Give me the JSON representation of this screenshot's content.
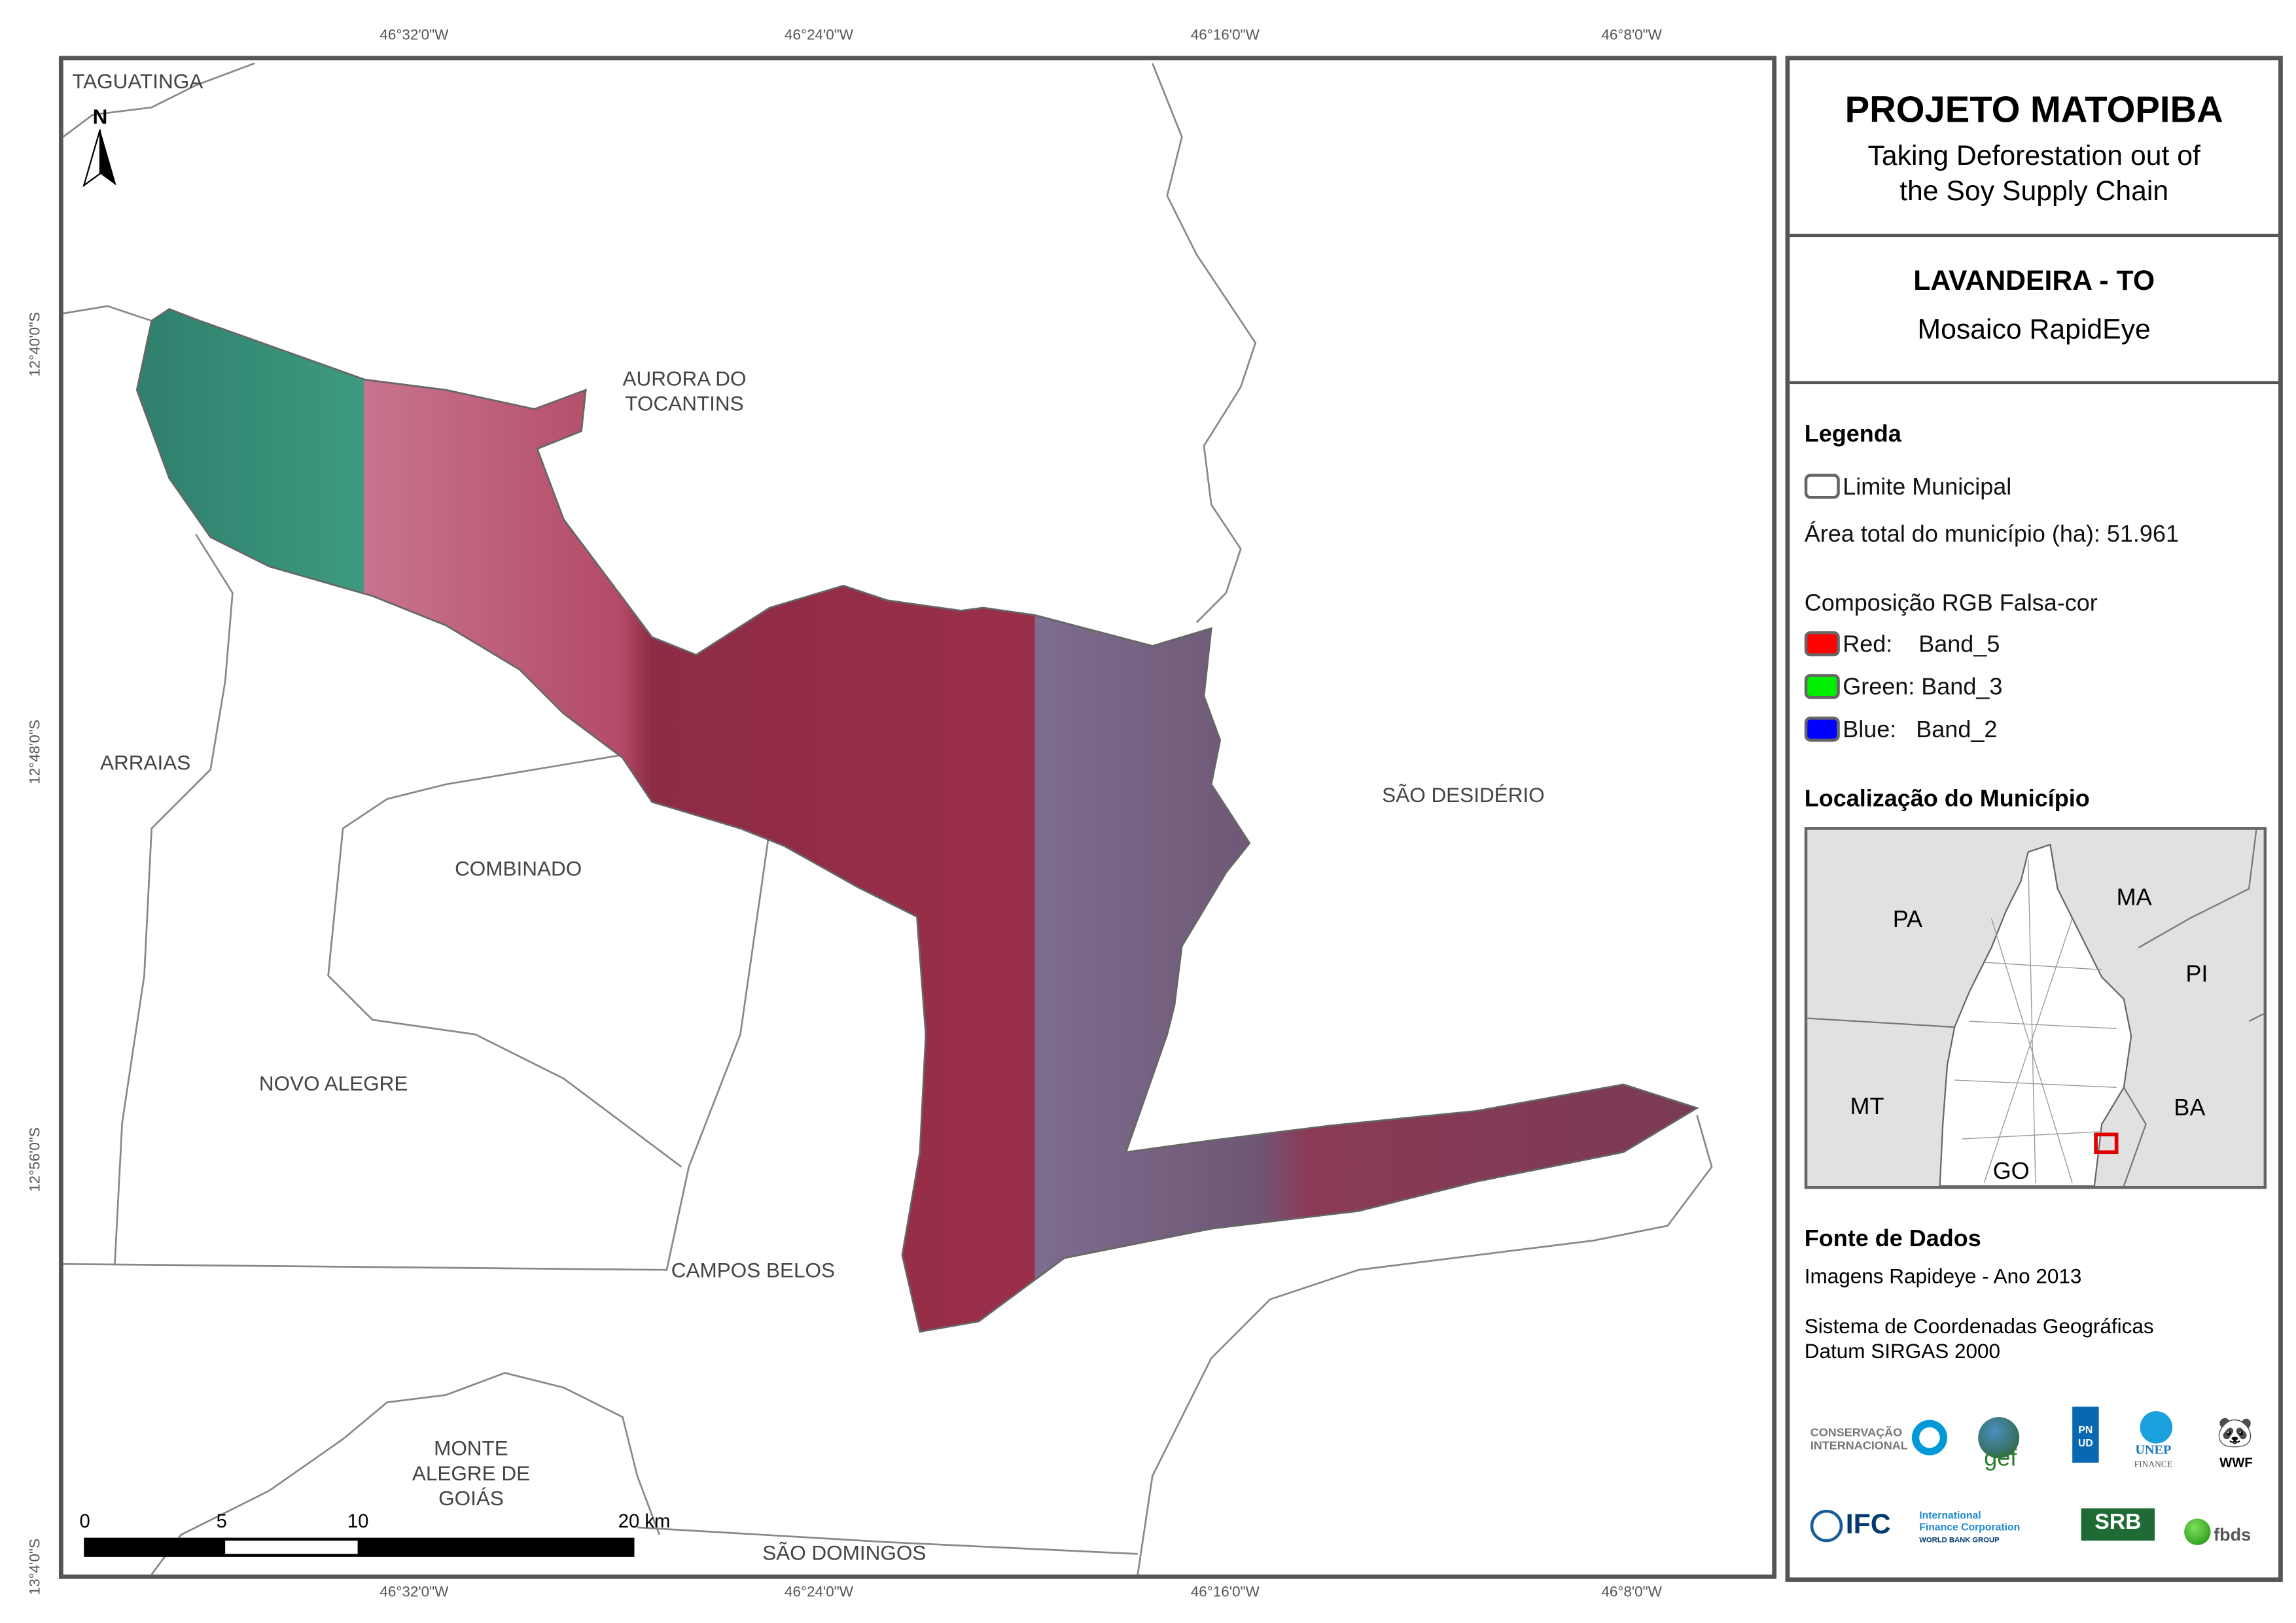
{
  "axes": {
    "lon_ticks": [
      "46°32'0\"W",
      "46°24'0\"W",
      "46°16'0\"W",
      "46°8'0\"W"
    ],
    "lat_ticks": [
      "12°40'0\"S",
      "12°48'0\"S",
      "12°56'0\"S",
      "13°4'0\"S"
    ]
  },
  "map": {
    "north_arrow": "N",
    "places": {
      "taguatinga": "TAGUATINGA",
      "aurora": "AURORA DO\nTOCANTINS",
      "arraias": "ARRAIAS",
      "combinado": "COMBINADO",
      "sao_desiderio": "SÃO DESIDÉRIO",
      "novo_alegre": "NOVO ALEGRE",
      "campos_belos": "CAMPOS BELOS",
      "monte_alegre": "MONTE\nALEGRE DE\nGOIÁS",
      "sao_domingos": "SÃO DOMINGOS"
    },
    "scale_bar": {
      "labels": [
        "0",
        "5",
        "10",
        "20 km"
      ]
    }
  },
  "panel": {
    "title": "PROJETO MATOPIBA",
    "subtitle_line1": "Taking Deforestation out of",
    "subtitle_line2": "the Soy Supply Chain",
    "municipality": "LAVANDEIRA - TO",
    "product": "Mosaico RapidEye",
    "legend": {
      "heading": "Legenda",
      "limit_label": "Limite Municipal",
      "area_text": "Área total do município (ha): 51.961",
      "composition_heading": "Composição RGB Falsa-cor",
      "bands": [
        {
          "label": "Red:    Band_5",
          "color": "#ff0000"
        },
        {
          "label": "Green: Band_3",
          "color": "#00ee00"
        },
        {
          "label": "Blue:   Band_2",
          "color": "#0000ff"
        }
      ]
    },
    "location": {
      "heading": "Localização do Município",
      "states": [
        "PA",
        "MA",
        "PI",
        "MT",
        "BA",
        "GO"
      ]
    },
    "sources": {
      "heading": "Fonte de Dados",
      "images": "Imagens Rapideye - Ano 2013",
      "crs_line1": "Sistema de Coordenadas Geográficas",
      "crs_line2": "Datum SIRGAS 2000"
    },
    "logos": [
      "CONSERVAÇÃO INTERNACIONAL Brasil",
      "gef",
      "PNUD",
      "UNEP FINANCE INITIATIVE",
      "WWF",
      "IFC International Finance Corporation WORLD BANK GROUP",
      "SRB SOCIEDADE RURAL BRASILEIRA",
      "fbds"
    ]
  }
}
